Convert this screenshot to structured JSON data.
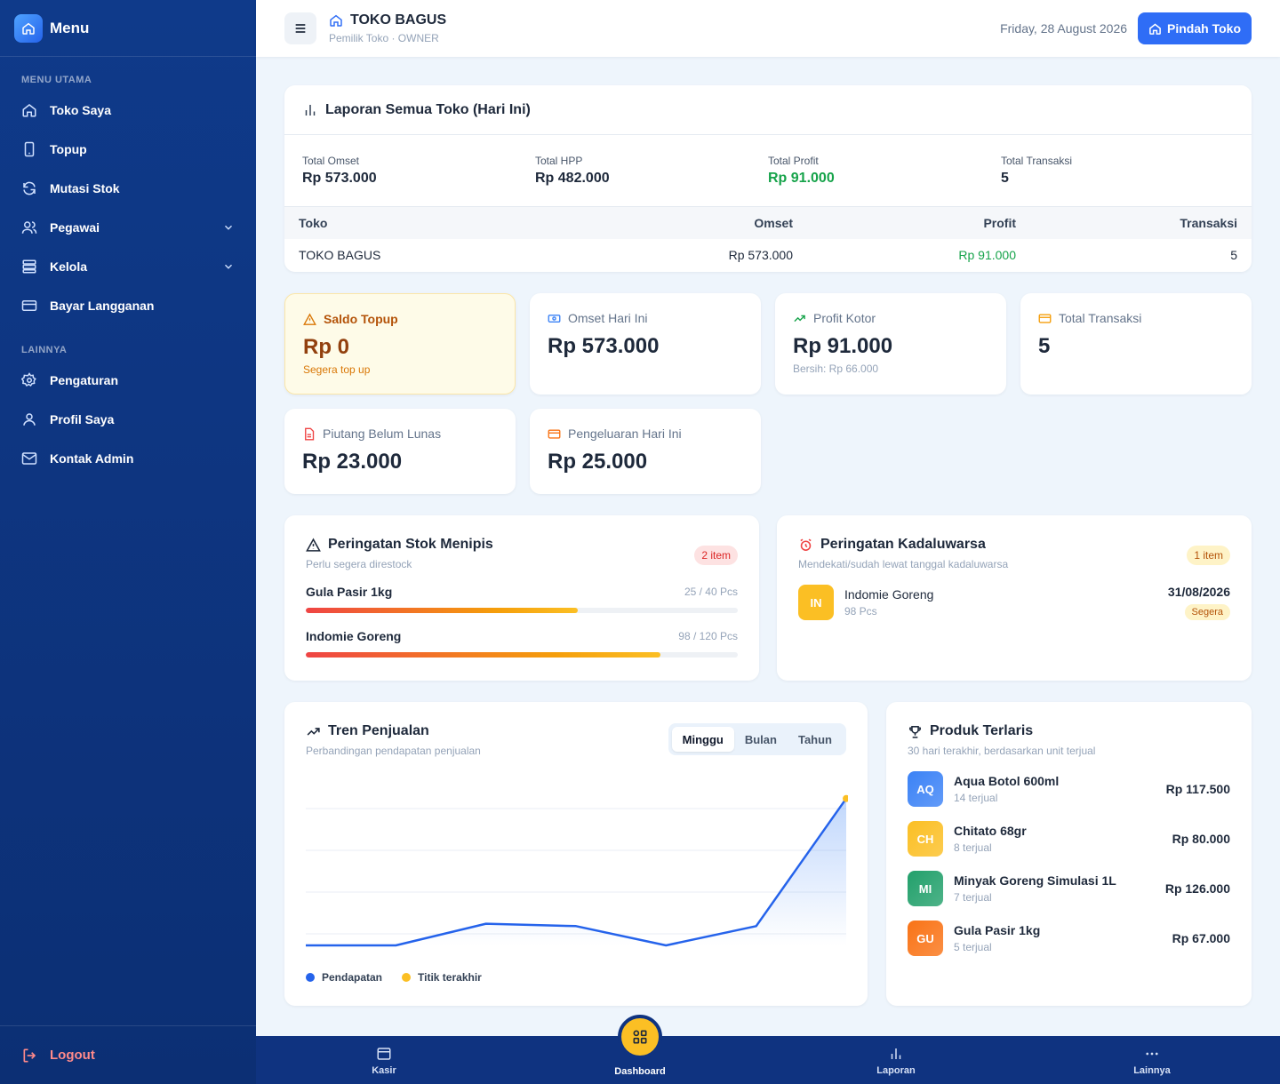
{
  "sidebar": {
    "title": "Menu",
    "section_main": "MENU UTAMA",
    "items_main": [
      {
        "label": "Toko Saya",
        "icon": "home-icon"
      },
      {
        "label": "Topup",
        "icon": "phone-icon"
      },
      {
        "label": "Mutasi Stok",
        "icon": "refresh-icon"
      },
      {
        "label": "Pegawai",
        "icon": "users-icon"
      },
      {
        "label": "Kelola",
        "icon": "server-icon"
      },
      {
        "label": "Bayar Langganan",
        "icon": "credit-card-icon"
      }
    ],
    "section_other": "LAINNYA",
    "items_other": [
      {
        "label": "Pengaturan",
        "icon": "gear-icon"
      },
      {
        "label": "Profil Saya",
        "icon": "user-icon"
      },
      {
        "label": "Kontak Admin",
        "icon": "mail-icon"
      }
    ],
    "logout": "Logout"
  },
  "header": {
    "store_name": "TOKO BAGUS",
    "store_sub": "Pemilik Toko · OWNER",
    "date": "Friday, 28 August 2026",
    "pindah_label": "Pindah Toko"
  },
  "laporan": {
    "title": "Laporan Semua Toko (Hari Ini)",
    "stats": [
      {
        "label": "Total Omset",
        "value": "Rp 573.000"
      },
      {
        "label": "Total HPP",
        "value": "Rp 482.000"
      },
      {
        "label": "Total Profit",
        "value": "Rp 91.000"
      },
      {
        "label": "Total Transaksi",
        "value": "5"
      }
    ],
    "columns": [
      "Toko",
      "Omset",
      "Profit",
      "Transaksi"
    ],
    "rows": [
      {
        "toko": "TOKO BAGUS",
        "omset": "Rp 573.000",
        "profit": "Rp 91.000",
        "transaksi": "5"
      }
    ]
  },
  "stats": {
    "saldo": {
      "label": "Saldo Topup",
      "value": "Rp 0",
      "sub": "Segera top up"
    },
    "omset": {
      "label": "Omset Hari Ini",
      "value": "Rp 573.000"
    },
    "profit": {
      "label": "Profit Kotor",
      "value": "Rp 91.000",
      "sub": "Bersih: Rp 66.000"
    },
    "transaksi": {
      "label": "Total Transaksi",
      "value": "5"
    },
    "piutang": {
      "label": "Piutang Belum Lunas",
      "value": "Rp 23.000"
    },
    "pengeluaran": {
      "label": "Pengeluaran Hari Ini",
      "value": "Rp 25.000"
    }
  },
  "stok": {
    "title": "Peringatan Stok Menipis",
    "sub": "Perlu segera direstock",
    "badge": "2 item",
    "items": [
      {
        "name": "Gula Pasir 1kg",
        "qty": "25 / 40 Pcs",
        "fill": 0.63
      },
      {
        "name": "Indomie Goreng",
        "qty": "98 / 120 Pcs",
        "fill": 0.82
      }
    ]
  },
  "kadaluwarsa": {
    "title": "Peringatan Kadaluwarsa",
    "sub": "Mendekati/sudah lewat tanggal kadaluwarsa",
    "badge": "1 item",
    "items": [
      {
        "initials": "IN",
        "name": "Indomie Goreng",
        "qty": "98 Pcs",
        "date": "31/08/2026",
        "status": "Segera"
      }
    ]
  },
  "tren": {
    "title": "Tren Penjualan",
    "sub": "Perbandingan pendapatan penjualan",
    "tabs": [
      "Minggu",
      "Bulan",
      "Tahun"
    ],
    "legend": [
      "Pendapatan",
      "Titik terakhir"
    ]
  },
  "chart_data": {
    "type": "area",
    "series": [
      {
        "name": "Pendapatan",
        "values": [
          0,
          0,
          56000,
          50000,
          0,
          50000,
          380000
        ]
      }
    ],
    "grid": true
  },
  "terlaris": {
    "title": "Produk Terlaris",
    "sub": "30 hari terakhir, berdasarkan unit terjual",
    "items": [
      {
        "initials": "AQ",
        "name": "Aqua Botol 600ml",
        "sold": "14 terjual",
        "value": "Rp 117.500",
        "color": "#3b82f6"
      },
      {
        "initials": "CH",
        "name": "Chitato 68gr",
        "sold": "8 terjual",
        "value": "Rp 80.000",
        "color": "#fbbf24"
      },
      {
        "initials": "MI",
        "name": "Minyak Goreng Simulasi 1L",
        "sold": "7 terjual",
        "value": "Rp 126.000",
        "color": "#22a06b"
      },
      {
        "initials": "GU",
        "name": "Gula Pasir 1kg",
        "sold": "5 terjual",
        "value": "Rp 67.000",
        "color": "#f97316"
      }
    ]
  },
  "bottom_nav": {
    "items": [
      {
        "label": "Kasir",
        "icon": "card-icon"
      },
      {
        "label": "Dashboard",
        "icon": "grid-icon"
      },
      {
        "label": "Laporan",
        "icon": "bar-chart-icon"
      },
      {
        "label": "Lainnya",
        "icon": "more-icon"
      }
    ]
  },
  "colors": {
    "primary": "#2f6df6",
    "sidebar": "#0f3a8a",
    "profit": "#16a34a",
    "warning": "#fbbf24",
    "danger": "#ef4444"
  }
}
